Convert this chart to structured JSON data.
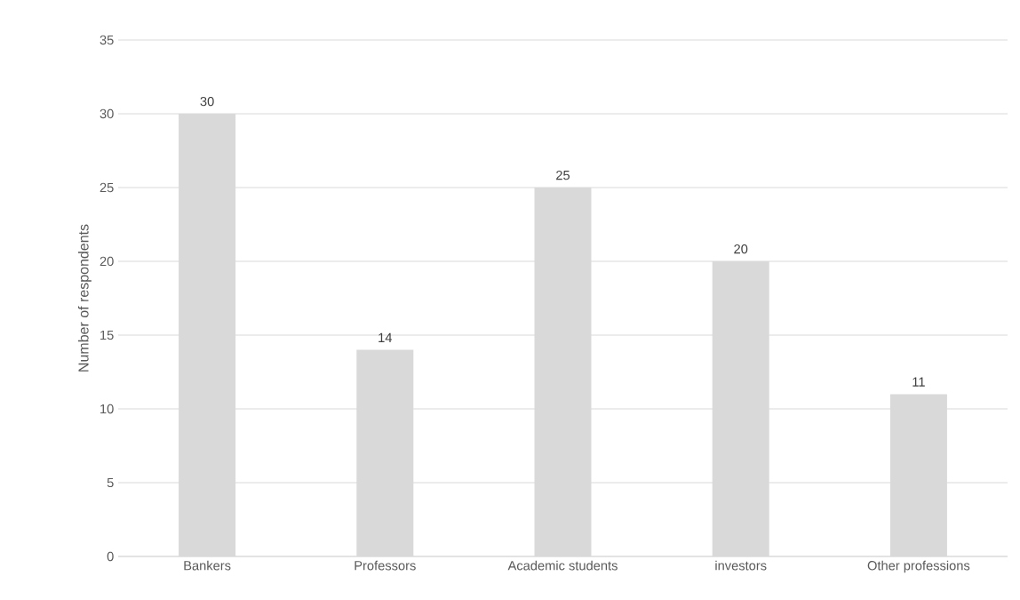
{
  "chart_data": {
    "type": "bar",
    "ylabel": "Number of respondents",
    "categories": [
      "Bankers",
      "Professors",
      "Academic students",
      "investors",
      "Other professions"
    ],
    "values": [
      30,
      14,
      25,
      20,
      11
    ],
    "color": "#d9d9d9",
    "ylim": [
      0,
      35
    ],
    "yticks": [
      0,
      5,
      10,
      15,
      20,
      25,
      30,
      35
    ],
    "grid": "y",
    "data_labels": true
  }
}
